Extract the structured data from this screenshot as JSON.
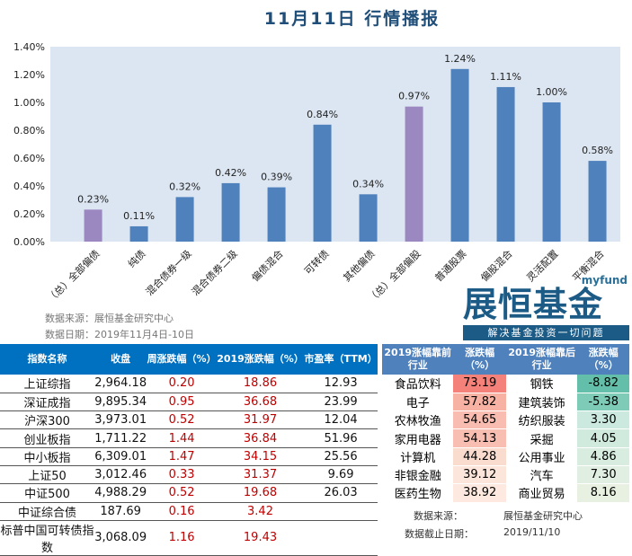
{
  "title": "11月11日  行情播报",
  "chart_data": {
    "type": "bar",
    "title": "",
    "categories": [
      "（总）全部偏债",
      "纯债",
      "混合债券一级",
      "混合债券二级",
      "偏债混合",
      "可转债",
      "其他偏债",
      "（总）全部偏股",
      "普通股票",
      "偏股混合",
      "灵活配置",
      "平衡混合"
    ],
    "values": [
      0.23,
      0.11,
      0.32,
      0.42,
      0.39,
      0.84,
      0.34,
      0.97,
      1.24,
      1.11,
      1.0,
      0.58
    ],
    "data_labels": [
      "0.23%",
      "0.11%",
      "0.32%",
      "0.42%",
      "0.39%",
      "0.84%",
      "0.34%",
      "0.97%",
      "1.24%",
      "1.11%",
      "1.00%",
      "0.58%"
    ],
    "highlight": [
      true,
      false,
      false,
      false,
      false,
      false,
      false,
      true,
      false,
      false,
      false,
      false
    ],
    "yticks": [
      "0.00%",
      "0.20%",
      "0.40%",
      "0.60%",
      "0.80%",
      "1.00%",
      "1.20%",
      "1.40%"
    ],
    "ylim": [
      0,
      1.4
    ],
    "unit": "%",
    "colors": {
      "bar": "#4f81bd",
      "highlight": "#9b88c0",
      "plot_bg": "#dce6f2"
    }
  },
  "chart_source": "数据来源：展恒基金研究中心",
  "chart_date": "数据日期：2019年11月4日-10日",
  "logo": {
    "top": "myfund",
    "main": "展恒基金",
    "slogan": "解决基金投资一切问题"
  },
  "index_table": {
    "headers": [
      "指数名称",
      "收盘",
      "周涨跌幅（%）",
      "2019涨跌幅（%）",
      "市盈率（TTM）"
    ],
    "rows": [
      [
        "上证综指",
        "2,964.18",
        "0.20",
        "18.86",
        "12.93"
      ],
      [
        "深证成指",
        "9,895.34",
        "0.95",
        "36.68",
        "23.99"
      ],
      [
        "沪深300",
        "3,973.01",
        "0.52",
        "31.97",
        "12.04"
      ],
      [
        "创业板指",
        "1,711.22",
        "1.44",
        "36.84",
        "51.96"
      ],
      [
        "中小板指",
        "6,309.01",
        "1.47",
        "34.15",
        "25.56"
      ],
      [
        "上证50",
        "3,012.46",
        "0.33",
        "31.37",
        "9.69"
      ],
      [
        "中证500",
        "4,988.29",
        "0.52",
        "19.68",
        "26.03"
      ],
      [
        "中证综合债",
        "187.69",
        "0.16",
        "3.42",
        ""
      ],
      [
        "标普中国可转债指数",
        "3,068.09",
        "1.16",
        "19.43",
        ""
      ]
    ]
  },
  "industry_table": {
    "headers": [
      "2019涨幅靠前行业",
      "涨跌幅（%）",
      "2019涨幅靠后行业",
      "涨跌幅（%）"
    ],
    "rows": [
      [
        "食品饮料",
        "73.19",
        "钢铁",
        "-8.82"
      ],
      [
        "电子",
        "57.82",
        "建筑装饰",
        "-5.38"
      ],
      [
        "农林牧渔",
        "54.65",
        "纺织服装",
        "3.30"
      ],
      [
        "家用电器",
        "54.13",
        "采掘",
        "4.05"
      ],
      [
        "计算机",
        "44.28",
        "公用事业",
        "4.86"
      ],
      [
        "非银金融",
        "39.12",
        "汽车",
        "7.30"
      ],
      [
        "医药生物",
        "38.92",
        "商业贸易",
        "8.16"
      ]
    ],
    "top_colors": [
      "#f4827a",
      "#f7b2a4",
      "#f8bdb0",
      "#f8beb1",
      "#fadccf",
      "#fce6dc",
      "#fde9df"
    ],
    "bottom_colors": [
      "#63bfa9",
      "#7ecbb7",
      "#cbe9df",
      "#d0eade",
      "#d8ede0",
      "#e0efe1",
      "#e8f1e1"
    ]
  },
  "footer": {
    "source_label": "数据来源：",
    "source_value": "展恒基金研究中心",
    "date_label": "数据截止日期：",
    "date_value": "2019/11/10"
  }
}
